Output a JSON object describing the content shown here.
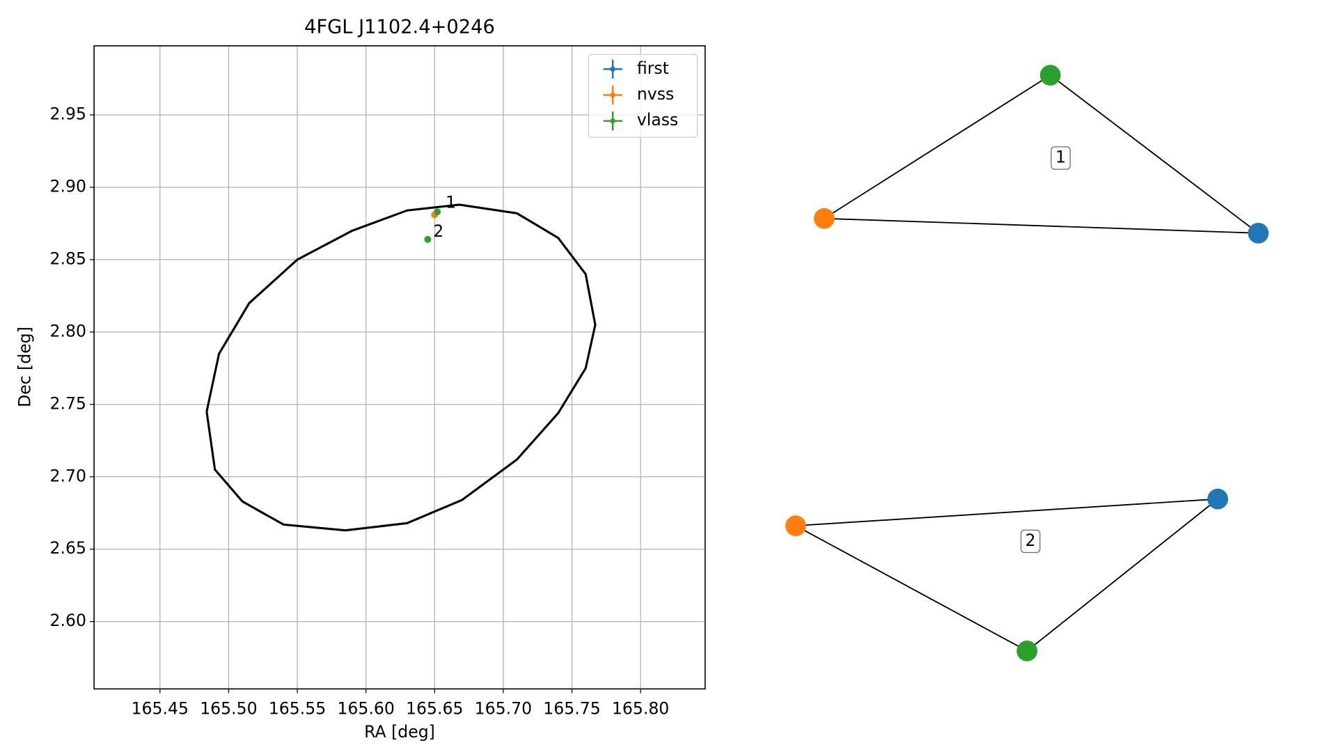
{
  "chart_data": [
    {
      "type": "scatter",
      "title": "4FGL J1102.4+0246",
      "x_label": "RA [deg]",
      "y_label": "Dec [deg]",
      "xlim": [
        165.402,
        165.847
      ],
      "ylim": [
        2.5535,
        2.9977
      ],
      "xticks": [
        165.45,
        {
          "value": 165.5,
          "label": "165.50"
        },
        165.55,
        {
          "value": 165.6,
          "label": "165.60"
        },
        165.65,
        {
          "value": 165.7,
          "label": "165.70"
        },
        165.75,
        {
          "value": 165.8,
          "label": "165.80"
        }
      ],
      "yticks": [
        {
          "value": 2.6,
          "label": "2.60"
        },
        2.65,
        {
          "value": 2.7,
          "label": "2.70"
        },
        2.75,
        {
          "value": 2.8,
          "label": "2.80"
        },
        2.85,
        {
          "value": 2.9,
          "label": "2.90"
        },
        2.95
      ],
      "grid": true,
      "legend": "upper right",
      "series": [
        {
          "name": "first",
          "color": "#1f77b4",
          "x": [],
          "values": []
        },
        {
          "name": "nvss",
          "color": "#ff7f0e",
          "x": [
            165.65
          ],
          "values": [
            2.881
          ]
        },
        {
          "name": "vlass",
          "color": "#2ca02c",
          "x": [
            165.652,
            165.645
          ],
          "values": [
            2.883,
            2.864
          ]
        }
      ],
      "ellipse": {
        "color": "#000000",
        "ra": [
          165.484,
          165.49,
          165.51,
          165.54,
          165.585,
          165.63,
          165.67,
          165.71,
          165.74,
          165.76,
          165.767,
          165.76,
          165.74,
          165.71,
          165.668,
          165.63,
          165.59,
          165.55,
          165.515,
          165.493,
          165.484
        ],
        "dec": [
          2.745,
          2.705,
          2.683,
          2.667,
          2.663,
          2.668,
          2.684,
          2.712,
          2.744,
          2.775,
          2.805,
          2.84,
          2.865,
          2.882,
          2.888,
          2.884,
          2.87,
          2.85,
          2.82,
          2.785,
          2.745
        ]
      },
      "annotations": [
        {
          "text": "1",
          "x": 165.658,
          "y": 2.889
        },
        {
          "text": "2",
          "x": 165.649,
          "y": 2.869
        }
      ]
    },
    {
      "type": "network",
      "graphs": [
        {
          "label": "1",
          "node_colors": [
            "#2ca02c",
            "#ff7f0e",
            "#1f77b4"
          ]
        },
        {
          "label": "2",
          "node_colors": [
            "#1f77b4",
            "#ff7f0e",
            "#2ca02c"
          ]
        }
      ]
    }
  ]
}
